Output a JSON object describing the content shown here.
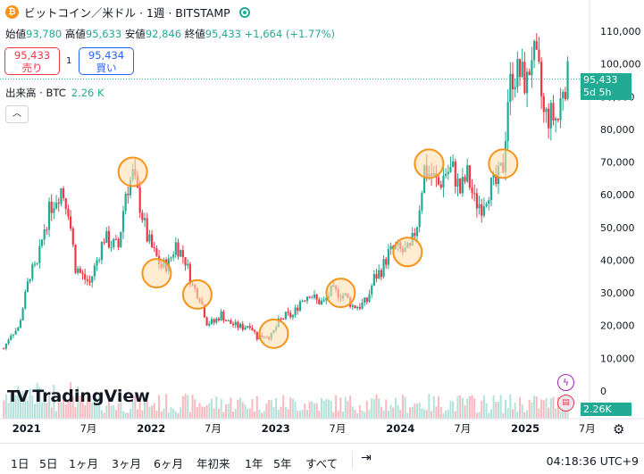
{
  "header": {
    "coin_icon": "bitcoin-icon",
    "title": "ビットコイン／米ドル · 1週 · BITSTAMP",
    "status_color": "#22ab94"
  },
  "ohlc": {
    "open_label": "始値",
    "open": "93,780",
    "high_label": "高値",
    "high": "95,633",
    "low_label": "安値",
    "low": "92,846",
    "close_label": "終値",
    "close": "95,433",
    "change": "+1,664 (+1.77%)"
  },
  "trade": {
    "sell_price": "95,433",
    "sell_label": "売り",
    "qty": "1",
    "buy_price": "95,434",
    "buy_label": "買い"
  },
  "volume": {
    "label": "出来高 · BTC",
    "value": "2.26 K"
  },
  "price_tag": {
    "price": "95,433",
    "countdown": "5d 5h"
  },
  "volume_tag": "2.26K",
  "logo": "TradingView",
  "bottom": {
    "ranges": [
      "1日",
      "5日",
      "1ヶ月",
      "3ヶ月",
      "6ヶ月",
      "年初来",
      "1年",
      "5年",
      "すべて"
    ],
    "clock": "04:18:36 UTC+9"
  },
  "colors": {
    "up": "#22ab94",
    "down": "#f23645",
    "circle": "#f7931a"
  },
  "chart_data": {
    "type": "candlestick",
    "title": "",
    "y_axis_labels": [
      "110,000",
      "100,000",
      "90,000",
      "80,000",
      "70,000",
      "60,000",
      "50,000",
      "40,000",
      "30,000",
      "20,000",
      "10,000",
      "0"
    ],
    "y_ticks": [
      110000,
      100000,
      90000,
      80000,
      70000,
      60000,
      50000,
      40000,
      30000,
      20000,
      10000,
      0
    ],
    "ylim": [
      0,
      120000
    ],
    "x_axis_labels": [
      "2021",
      "7月",
      "2022",
      "7月",
      "2023",
      "7月",
      "2024",
      "7月",
      "2025",
      "7月"
    ],
    "x_ticks": [
      "2021-01-01",
      "2021-07-01",
      "2022-01-01",
      "2022-07-01",
      "2023-01-01",
      "2023-07-01",
      "2024-01-01",
      "2024-07-01",
      "2025-01-01",
      "2025-07-01"
    ],
    "xlim": [
      "2020-10-15",
      "2025-07-08"
    ],
    "last_price": 95433,
    "series": [
      {
        "values": [
          [
            "2020-10-26",
            13000
          ],
          [
            "2020-11-16",
            17500
          ],
          [
            "2020-12-07",
            19000
          ],
          [
            "2020-12-28",
            29000
          ],
          [
            "2021-01-11",
            36000
          ],
          [
            "2021-02-01",
            38000
          ],
          [
            "2021-02-22",
            50000
          ],
          [
            "2021-03-15",
            57000
          ],
          [
            "2021-04-12",
            62000
          ],
          [
            "2021-05-03",
            56000
          ],
          [
            "2021-05-24",
            38000
          ],
          [
            "2021-06-14",
            35000
          ],
          [
            "2021-07-05",
            33000
          ],
          [
            "2021-07-26",
            40000
          ],
          [
            "2021-08-16",
            47000
          ],
          [
            "2021-09-06",
            45000
          ],
          [
            "2021-09-27",
            44000
          ],
          [
            "2021-10-18",
            61000
          ],
          [
            "2021-11-08",
            66000
          ],
          [
            "2021-11-29",
            57000
          ],
          [
            "2021-12-20",
            47000
          ],
          [
            "2022-01-10",
            42000
          ],
          [
            "2022-01-31",
            38000
          ],
          [
            "2022-02-21",
            39000
          ],
          [
            "2022-03-14",
            45000
          ],
          [
            "2022-04-11",
            40000
          ],
          [
            "2022-05-02",
            32000
          ],
          [
            "2022-05-23",
            29000
          ],
          [
            "2022-06-13",
            21000
          ],
          [
            "2022-07-04",
            21000
          ],
          [
            "2022-07-25",
            23500
          ],
          [
            "2022-08-15",
            21000
          ],
          [
            "2022-09-05",
            20000
          ],
          [
            "2022-09-26",
            19500
          ],
          [
            "2022-10-17",
            20500
          ],
          [
            "2022-11-07",
            16500
          ],
          [
            "2022-11-28",
            17000
          ],
          [
            "2022-12-19",
            16800
          ],
          [
            "2023-01-09",
            21000
          ],
          [
            "2023-01-30",
            23000
          ],
          [
            "2023-02-20",
            23000
          ],
          [
            "2023-03-13",
            27500
          ],
          [
            "2023-04-10",
            30000
          ],
          [
            "2023-05-01",
            27500
          ],
          [
            "2023-05-22",
            27000
          ],
          [
            "2023-06-12",
            30500
          ],
          [
            "2023-07-03",
            30000
          ],
          [
            "2023-07-24",
            29000
          ],
          [
            "2023-08-14",
            26000
          ],
          [
            "2023-09-04",
            26000
          ],
          [
            "2023-09-25",
            27500
          ],
          [
            "2023-10-16",
            34500
          ],
          [
            "2023-11-06",
            37000
          ],
          [
            "2023-11-27",
            42000
          ],
          [
            "2023-12-18",
            43500
          ],
          [
            "2024-01-08",
            42500
          ],
          [
            "2024-01-29",
            43000
          ],
          [
            "2024-02-19",
            51500
          ],
          [
            "2024-03-11",
            68000
          ],
          [
            "2024-04-01",
            66000
          ],
          [
            "2024-04-22",
            63000
          ],
          [
            "2024-05-13",
            67000
          ],
          [
            "2024-06-03",
            67500
          ],
          [
            "2024-06-24",
            61000
          ],
          [
            "2024-07-15",
            66000
          ],
          [
            "2024-08-05",
            58000
          ],
          [
            "2024-08-26",
            57000
          ],
          [
            "2024-09-16",
            62000
          ],
          [
            "2024-10-07",
            63000
          ],
          [
            "2024-10-28",
            69000
          ],
          [
            "2024-11-11",
            90000
          ],
          [
            "2024-11-25",
            97000
          ],
          [
            "2024-12-16",
            97000
          ],
          [
            "2025-01-06",
            94000
          ],
          [
            "2025-01-20",
            104000
          ],
          [
            "2025-02-10",
            96000
          ],
          [
            "2025-02-24",
            84000
          ],
          [
            "2025-03-17",
            84000
          ],
          [
            "2025-04-07",
            83000
          ],
          [
            "2025-04-21",
            94000
          ],
          [
            "2025-05-05",
            95433
          ]
        ]
      }
    ],
    "circles": [
      [
        "2021-11-08",
        67000
      ],
      [
        "2022-01-17",
        36000
      ],
      [
        "2022-05-16",
        29500
      ],
      [
        "2022-12-26",
        17500
      ],
      [
        "2023-07-10",
        30000
      ],
      [
        "2024-01-22",
        42500
      ],
      [
        "2024-03-25",
        69500
      ],
      [
        "2024-10-28",
        69500
      ]
    ],
    "volume_axis_label": "0"
  }
}
